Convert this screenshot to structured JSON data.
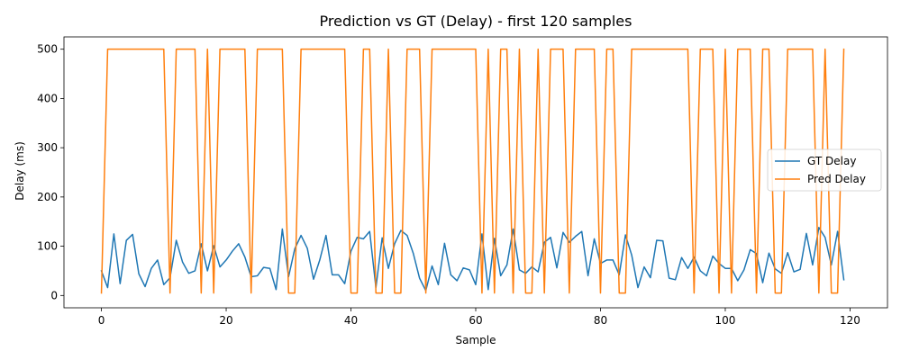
{
  "chart_data": {
    "type": "line",
    "title": "Prediction vs GT (Delay) - first 120 samples",
    "xlabel": "Sample",
    "ylabel": "Delay (ms)",
    "xlim": [
      -6,
      126
    ],
    "ylim": [
      -25,
      525
    ],
    "xticks": [
      0,
      20,
      40,
      60,
      80,
      100,
      120
    ],
    "yticks": [
      0,
      100,
      200,
      300,
      400,
      500
    ],
    "grid": false,
    "legend_position": "center-right",
    "series": [
      {
        "name": "GT Delay",
        "color": "#1f77b4",
        "values": [
          50,
          16,
          125,
          24,
          112,
          124,
          44,
          18,
          55,
          72,
          22,
          36,
          112,
          68,
          45,
          50,
          105,
          50,
          101,
          58,
          72,
          90,
          105,
          78,
          38,
          40,
          57,
          55,
          12,
          135,
          38,
          95,
          122,
          96,
          33,
          72,
          122,
          42,
          42,
          24,
          90,
          118,
          115,
          130,
          16,
          117,
          55,
          105,
          132,
          122,
          85,
          35,
          10,
          60,
          22,
          106,
          42,
          30,
          56,
          52,
          22,
          125,
          12,
          116,
          40,
          62,
          135,
          52,
          45,
          58,
          48,
          108,
          118,
          56,
          128,
          108,
          120,
          130,
          40,
          115,
          65,
          72,
          72,
          42,
          123,
          82,
          16,
          58,
          36,
          112,
          111,
          35,
          32,
          77,
          55,
          78,
          50,
          40,
          80,
          65,
          55,
          55,
          30,
          52,
          93,
          85,
          26,
          86,
          54,
          45,
          87,
          48,
          53,
          126,
          62,
          138,
          118,
          62,
          130,
          32
        ]
      },
      {
        "name": "Pred Delay",
        "color": "#ff7f0e",
        "values": [
          5,
          500,
          500,
          500,
          500,
          500,
          500,
          500,
          500,
          500,
          500,
          5,
          500,
          500,
          500,
          500,
          5,
          500,
          5,
          500,
          500,
          500,
          500,
          500,
          5,
          500,
          500,
          500,
          500,
          500,
          5,
          5,
          500,
          500,
          500,
          500,
          500,
          500,
          500,
          500,
          5,
          5,
          500,
          500,
          5,
          5,
          500,
          5,
          5,
          500,
          500,
          500,
          5,
          500,
          500,
          500,
          500,
          500,
          500,
          500,
          500,
          5,
          500,
          5,
          500,
          500,
          5,
          500,
          5,
          5,
          500,
          5,
          500,
          500,
          500,
          5,
          500,
          500,
          500,
          500,
          5,
          500,
          500,
          5,
          5,
          500,
          500,
          500,
          500,
          500,
          500,
          500,
          500,
          500,
          500,
          5,
          500,
          500,
          500,
          5,
          500,
          5,
          500,
          500,
          500,
          5,
          500,
          500,
          5,
          5,
          500,
          500,
          500,
          500,
          500,
          5,
          500,
          5,
          5,
          500
        ]
      }
    ]
  }
}
